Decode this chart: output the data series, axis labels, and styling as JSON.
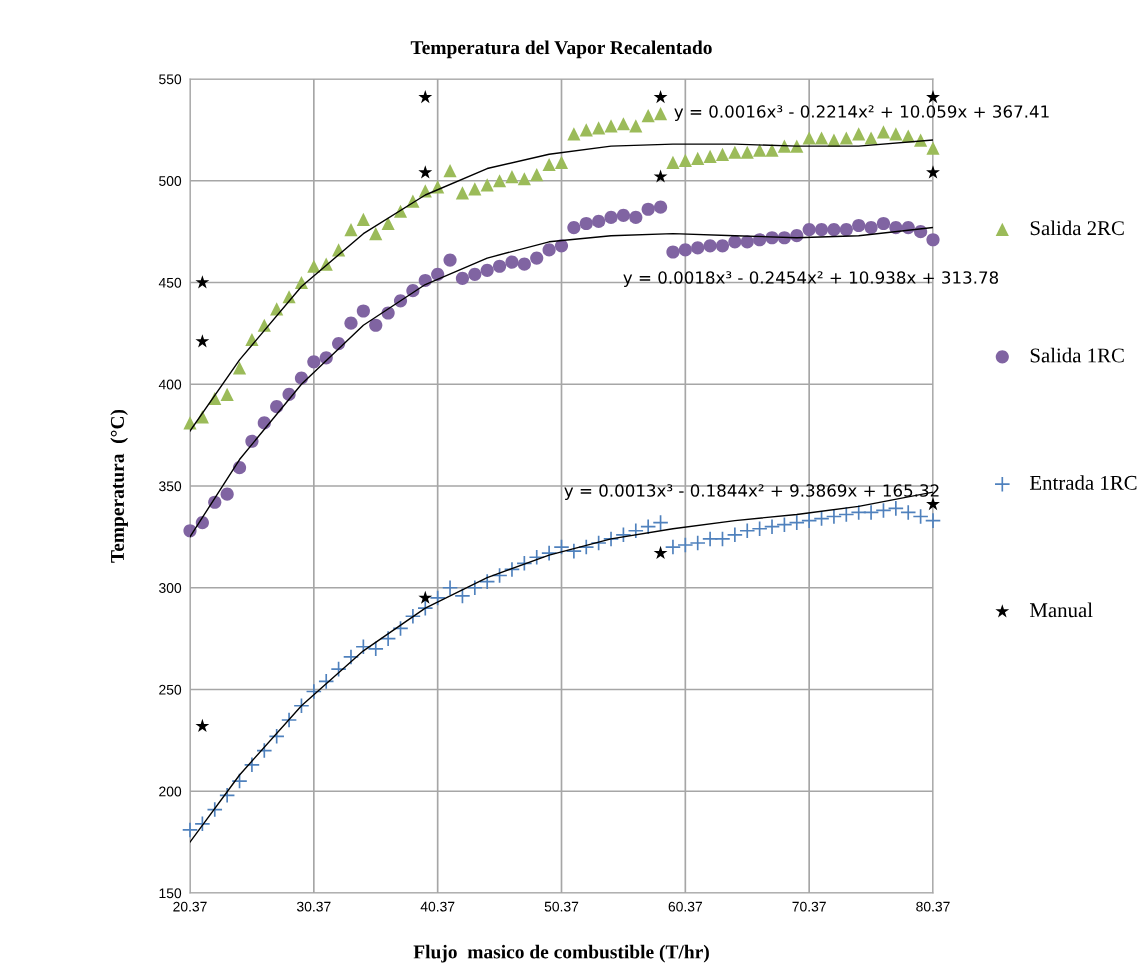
{
  "chart_data": {
    "type": "scatter",
    "title": "Temperatura del Vapor Recalentado",
    "xlabel": "Flujo  masico de combustible (T/hr)",
    "ylabel": "Temperatura  (°C)",
    "x": [
      20.37,
      21.37,
      22.37,
      23.37,
      24.37,
      25.37,
      26.37,
      27.37,
      28.37,
      29.37,
      30.37,
      31.37,
      32.37,
      33.37,
      34.37,
      35.37,
      36.37,
      37.37,
      38.37,
      39.37,
      40.37,
      41.37,
      42.37,
      43.37,
      44.37,
      45.37,
      46.37,
      47.37,
      48.37,
      49.37,
      50.37,
      51.37,
      52.37,
      53.37,
      54.37,
      55.37,
      56.37,
      57.37,
      58.37,
      59.37,
      60.37,
      61.37,
      62.37,
      63.37,
      64.37,
      65.37,
      66.37,
      67.37,
      68.37,
      69.37,
      70.37,
      71.37,
      72.37,
      73.37,
      74.37,
      75.37,
      76.37,
      77.37,
      78.37,
      79.37,
      80.37
    ],
    "series": [
      {
        "name": "Salida 2RC",
        "color": "#9bbb59",
        "marker": "triangle",
        "values": [
          381,
          384,
          393,
          395,
          408,
          422,
          429,
          437,
          443,
          450,
          458,
          459,
          466,
          476,
          481,
          474,
          479,
          485,
          490,
          495,
          497,
          505,
          494,
          496,
          498,
          500,
          502,
          501,
          503,
          508,
          509,
          523,
          525,
          526,
          527,
          528,
          527,
          532,
          533,
          509,
          510,
          511,
          512,
          513,
          514,
          514,
          515,
          515,
          517,
          517,
          521,
          521,
          520,
          521,
          523,
          521,
          524,
          523,
          522,
          520,
          516
        ]
      },
      {
        "name": "Salida 1RC",
        "color": "#8064a2",
        "marker": "circle",
        "values": [
          328,
          332,
          342,
          346,
          359,
          372,
          381,
          389,
          395,
          403,
          411,
          413,
          420,
          430,
          436,
          429,
          435,
          441,
          446,
          451,
          454,
          461,
          452,
          454,
          456,
          458,
          460,
          459,
          462,
          466,
          468,
          477,
          479,
          480,
          482,
          483,
          482,
          486,
          487,
          465,
          466,
          467,
          468,
          468,
          470,
          470,
          471,
          472,
          472,
          473,
          476,
          476,
          476,
          476,
          478,
          477,
          479,
          477,
          477,
          475,
          471
        ]
      },
      {
        "name": "Entrada 1RC",
        "color": "#4f81bd",
        "marker": "cross",
        "values": [
          181,
          184,
          191,
          198,
          205,
          213,
          220,
          227,
          235,
          242,
          249,
          254,
          260,
          266,
          271,
          270,
          275,
          280,
          286,
          290,
          295,
          300,
          296,
          300,
          303,
          306,
          309,
          312,
          315,
          317,
          320,
          318,
          320,
          322,
          324,
          326,
          328,
          330,
          332,
          320,
          321,
          322,
          324,
          324,
          326,
          328,
          329,
          330,
          331,
          332,
          333,
          334,
          335,
          336,
          337,
          337,
          338,
          339,
          337,
          335,
          333
        ]
      },
      {
        "name": "Manual",
        "color": "#000000",
        "marker": "star",
        "x": [
          21.37,
          21.37,
          21.37,
          39.37,
          39.37,
          39.37,
          58.37,
          58.37,
          58.37,
          80.37,
          80.37,
          80.37
        ],
        "values": [
          450,
          421,
          232,
          541,
          504,
          295,
          541,
          502,
          317,
          541,
          504,
          341
        ]
      },
      {
        "type": "line",
        "color": "#000000",
        "marker": "none",
        "x": [
          20.37,
          24.37,
          29.37,
          34.37,
          39.37,
          44.37,
          49.37,
          54.37,
          59.37,
          64.37,
          69.37,
          74.37,
          80.37
        ],
        "values": [
          377,
          412,
          448,
          474,
          493,
          506,
          513,
          517,
          518,
          518,
          517,
          517,
          520
        ]
      },
      {
        "type": "line",
        "color": "#000000",
        "marker": "none",
        "x": [
          20.37,
          24.37,
          29.37,
          34.37,
          39.37,
          44.37,
          49.37,
          54.37,
          59.37,
          64.37,
          69.37,
          74.37,
          80.37
        ],
        "values": [
          325,
          363,
          400,
          429,
          449,
          462,
          470,
          473,
          474,
          473,
          472,
          473,
          477
        ]
      },
      {
        "type": "line",
        "color": "#000000",
        "marker": "none",
        "x": [
          20.37,
          24.37,
          29.37,
          34.37,
          39.37,
          44.37,
          49.37,
          54.37,
          59.37,
          64.37,
          69.37,
          74.37,
          80.37
        ],
        "values": [
          175,
          208,
          242,
          269,
          290,
          305,
          316,
          324,
          329,
          333,
          336,
          340,
          347
        ]
      }
    ],
    "annotations": [
      "y = 0.0016x³ - 0.2214x² + 10.059x + 367.41",
      "y = 0.0018x³ - 0.2454x² + 10.938x + 313.78",
      "y = 0.0013x³ - 0.1844x² + 9.3869x + 165.32"
    ],
    "xlim": [
      20.37,
      80.37
    ],
    "xticks": [
      {
        "value": 20.37,
        "label": "20.37"
      },
      {
        "value": 30.37,
        "label": "30.37"
      },
      {
        "value": 40.37,
        "label": "40.37"
      },
      {
        "value": 50.37,
        "label": "50.37"
      },
      {
        "value": 60.37,
        "label": "60.37"
      },
      {
        "value": 70.37,
        "label": "70.37"
      },
      {
        "value": 80.37,
        "label": "80.37"
      }
    ],
    "ylim": [
      150,
      550
    ],
    "yticks": [
      150,
      200,
      250,
      300,
      350,
      400,
      450,
      500,
      550
    ],
    "grid": true,
    "legend": "right"
  }
}
